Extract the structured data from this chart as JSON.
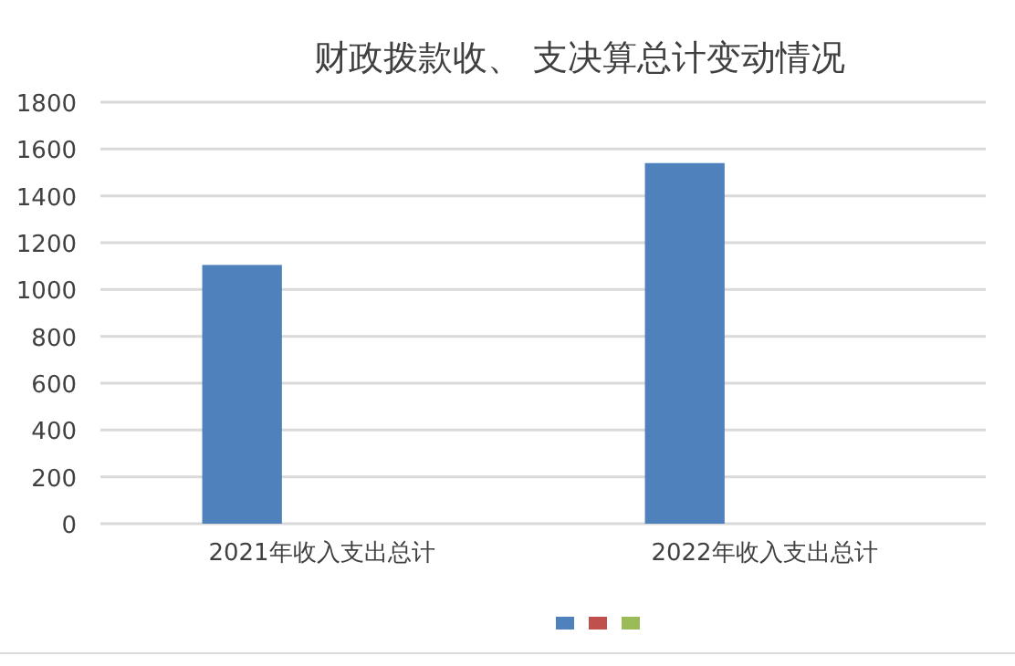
{
  "chart_data": {
    "type": "bar",
    "title": "财政拨款收、 支决算总计变动情况",
    "categories": [
      "2021年收入支出总计",
      "2022年收入支出总计"
    ],
    "series": [
      {
        "color": "#4f81bd",
        "values": [
          1105,
          1540
        ]
      },
      {
        "color": "#c0504d",
        "values": [
          null,
          null
        ]
      },
      {
        "color": "#9bbb59",
        "values": [
          null,
          null
        ]
      }
    ],
    "ylim": [
      0,
      1800
    ],
    "yticks": [
      0,
      200,
      400,
      600,
      800,
      1000,
      1200,
      1400,
      1600,
      1800
    ],
    "grid": "y"
  }
}
